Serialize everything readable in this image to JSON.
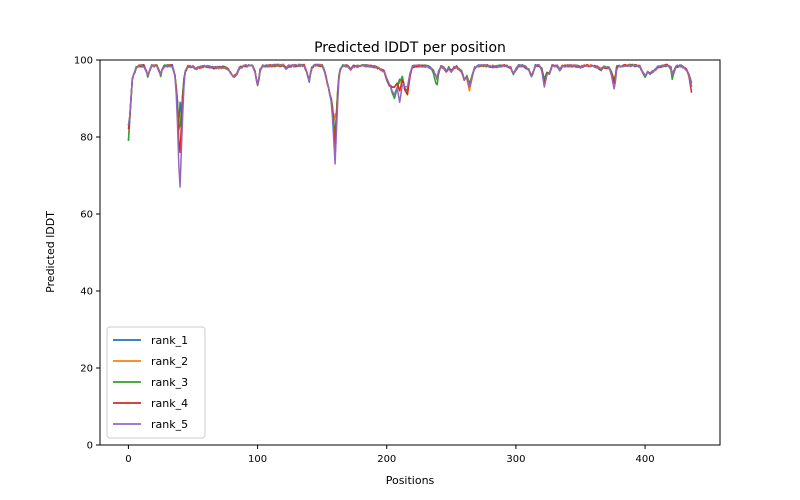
{
  "chart_data": {
    "type": "line",
    "title": "Predicted lDDT per position",
    "xlabel": "Positions",
    "ylabel": "Predicted lDDT",
    "xlim": [
      -22,
      458
    ],
    "ylim": [
      0,
      100
    ],
    "xticks": [
      0,
      100,
      200,
      300,
      400
    ],
    "yticks": [
      0,
      20,
      40,
      60,
      80,
      100
    ],
    "grid": false,
    "legend": "lower-left",
    "series": [
      {
        "name": "rank_1",
        "color": "#1f77b4"
      },
      {
        "name": "rank_2",
        "color": "#ff7f0e"
      },
      {
        "name": "rank_3",
        "color": "#2ca02c"
      },
      {
        "name": "rank_4",
        "color": "#d62728"
      },
      {
        "name": "rank_5",
        "color": "#9467bd"
      }
    ],
    "baseline": [
      [
        0,
        80
      ],
      [
        1,
        85
      ],
      [
        2,
        90
      ],
      [
        3,
        95
      ],
      [
        4,
        96
      ],
      [
        5,
        97
      ],
      [
        6,
        98
      ],
      [
        8,
        98.5
      ],
      [
        12,
        98.5
      ],
      [
        14,
        97
      ],
      [
        15,
        95.8
      ],
      [
        16,
        97
      ],
      [
        18,
        98.5
      ],
      [
        22,
        98.5
      ],
      [
        24,
        97
      ],
      [
        25,
        96
      ],
      [
        26,
        97.5
      ],
      [
        28,
        98.5
      ],
      [
        34,
        98.5
      ],
      [
        36,
        96
      ],
      [
        37,
        93
      ],
      [
        38,
        89
      ],
      [
        39,
        82
      ],
      [
        40,
        80
      ],
      [
        41,
        86
      ],
      [
        42,
        91
      ],
      [
        43,
        95
      ],
      [
        44,
        97
      ],
      [
        46,
        98.3
      ],
      [
        50,
        98.3
      ],
      [
        52,
        97.5
      ],
      [
        54,
        98
      ],
      [
        58,
        98.3
      ],
      [
        62,
        98.3
      ],
      [
        66,
        98
      ],
      [
        70,
        98
      ],
      [
        74,
        98.2
      ],
      [
        78,
        97.5
      ],
      [
        80,
        96
      ],
      [
        82,
        95.8
      ],
      [
        84,
        96.5
      ],
      [
        86,
        98
      ],
      [
        90,
        98.5
      ],
      [
        96,
        98.5
      ],
      [
        98,
        97
      ],
      [
        100,
        93.5
      ],
      [
        101,
        95
      ],
      [
        102,
        97.5
      ],
      [
        104,
        98.5
      ],
      [
        110,
        98.5
      ],
      [
        116,
        98.6
      ],
      [
        120,
        98.6
      ],
      [
        122,
        97.8
      ],
      [
        124,
        98.4
      ],
      [
        130,
        98.6
      ],
      [
        136,
        98.6
      ],
      [
        138,
        97
      ],
      [
        140,
        94.5
      ],
      [
        141,
        96.5
      ],
      [
        142,
        98
      ],
      [
        144,
        98.6
      ],
      [
        150,
        98.6
      ],
      [
        152,
        97
      ],
      [
        154,
        94
      ],
      [
        156,
        91
      ],
      [
        157,
        90
      ],
      [
        158,
        88
      ],
      [
        159,
        84
      ],
      [
        160,
        80
      ],
      [
        161,
        86
      ],
      [
        162,
        92
      ],
      [
        163,
        96
      ],
      [
        164,
        97.5
      ],
      [
        166,
        98.5
      ],
      [
        170,
        98.5
      ],
      [
        172,
        97.5
      ],
      [
        174,
        98.3
      ],
      [
        180,
        98.5
      ],
      [
        186,
        98.5
      ],
      [
        190,
        98.3
      ],
      [
        194,
        97.8
      ],
      [
        198,
        97
      ],
      [
        200,
        95
      ],
      [
        202,
        93.5
      ],
      [
        204,
        94
      ],
      [
        206,
        95.5
      ],
      [
        208,
        95
      ],
      [
        210,
        94
      ],
      [
        212,
        95.5
      ],
      [
        214,
        93.5
      ],
      [
        216,
        94
      ],
      [
        218,
        97
      ],
      [
        220,
        98.3
      ],
      [
        226,
        98.5
      ],
      [
        232,
        98.3
      ],
      [
        236,
        97.5
      ],
      [
        238,
        96
      ],
      [
        239,
        95
      ],
      [
        240,
        97
      ],
      [
        242,
        98.3
      ],
      [
        244,
        98
      ],
      [
        246,
        97
      ],
      [
        248,
        98
      ],
      [
        250,
        97
      ],
      [
        252,
        98
      ],
      [
        254,
        98.2
      ],
      [
        258,
        97
      ],
      [
        260,
        95
      ],
      [
        262,
        96
      ],
      [
        264,
        94
      ],
      [
        266,
        96
      ],
      [
        268,
        98
      ],
      [
        270,
        98.5
      ],
      [
        278,
        98.5
      ],
      [
        284,
        98.2
      ],
      [
        288,
        98.5
      ],
      [
        292,
        98.6
      ],
      [
        296,
        98
      ],
      [
        298,
        96.5
      ],
      [
        300,
        97.5
      ],
      [
        302,
        98.5
      ],
      [
        306,
        98.5
      ],
      [
        310,
        97.5
      ],
      [
        312,
        95.5
      ],
      [
        313,
        96.5
      ],
      [
        315,
        98.5
      ],
      [
        318,
        98.5
      ],
      [
        320,
        98
      ],
      [
        322,
        95
      ],
      [
        324,
        97
      ],
      [
        326,
        96.5
      ],
      [
        328,
        98.5
      ],
      [
        332,
        98.5
      ],
      [
        334,
        97.5
      ],
      [
        336,
        98.5
      ],
      [
        342,
        98.5
      ],
      [
        346,
        98.5
      ],
      [
        350,
        98.2
      ],
      [
        354,
        98.6
      ],
      [
        360,
        98.5
      ],
      [
        364,
        98
      ],
      [
        366,
        97.5
      ],
      [
        368,
        98.2
      ],
      [
        372,
        98
      ],
      [
        374,
        97
      ],
      [
        376,
        95
      ],
      [
        377,
        96
      ],
      [
        378,
        98.5
      ],
      [
        382,
        98.5
      ],
      [
        390,
        98.6
      ],
      [
        396,
        98.4
      ],
      [
        398,
        97
      ],
      [
        400,
        96
      ],
      [
        402,
        97
      ],
      [
        404,
        96.5
      ],
      [
        406,
        97
      ],
      [
        408,
        97.5
      ],
      [
        410,
        98.2
      ],
      [
        414,
        98.5
      ],
      [
        418,
        98.6
      ],
      [
        420,
        98.2
      ],
      [
        421,
        96
      ],
      [
        422,
        97
      ],
      [
        424,
        98.4
      ],
      [
        428,
        98.5
      ],
      [
        430,
        98
      ],
      [
        432,
        97.5
      ],
      [
        434,
        96.5
      ],
      [
        436,
        93.5
      ]
    ],
    "dips": [
      {
        "x": 0,
        "values": [
          83,
          79,
          79,
          82,
          83
        ]
      },
      {
        "x": 40,
        "values": [
          89,
          85,
          83,
          76,
          67
        ]
      },
      {
        "x": 160,
        "values": [
          79,
          86,
          80,
          77,
          73
        ]
      },
      {
        "x": 206,
        "values": [
          93,
          93,
          90,
          93,
          91
        ]
      },
      {
        "x": 210,
        "values": [
          95,
          94,
          95,
          92,
          89
        ]
      },
      {
        "x": 216,
        "values": [
          92,
          91,
          92,
          91,
          93
        ]
      },
      {
        "x": 238,
        "values": [
          96,
          96,
          94,
          96,
          96
        ]
      },
      {
        "x": 264,
        "values": [
          93,
          92,
          94,
          93,
          93
        ]
      },
      {
        "x": 322,
        "values": [
          94,
          94,
          95,
          94,
          93
        ]
      },
      {
        "x": 376,
        "values": [
          94,
          95,
          95,
          94,
          92.5
        ]
      },
      {
        "x": 400,
        "values": [
          96,
          96,
          95.5,
          96,
          96
        ]
      },
      {
        "x": 421,
        "values": [
          96,
          96,
          95,
          96,
          96
        ]
      },
      {
        "x": 436,
        "values": [
          94,
          93,
          93,
          91.5,
          93
        ]
      }
    ]
  }
}
